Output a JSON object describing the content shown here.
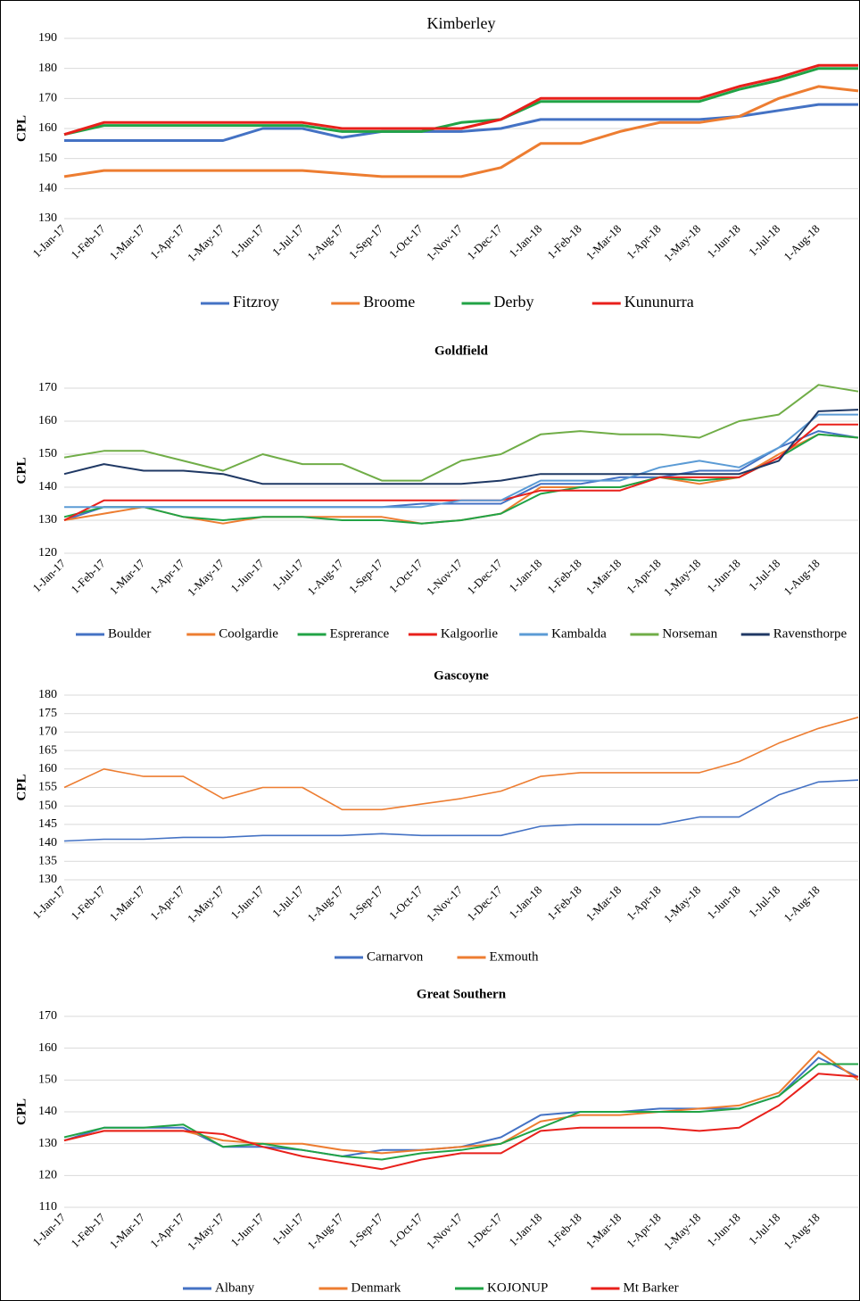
{
  "chart_data": [
    {
      "type": "line",
      "title": "Kimberley",
      "y_label": "CPL",
      "categories": [
        "1-Jan-17",
        "1-Feb-17",
        "1-Mar-17",
        "1-Apr-17",
        "1-May-17",
        "1-Jun-17",
        "1-Jul-17",
        "1-Aug-17",
        "1-Sep-17",
        "1-Oct-17",
        "1-Nov-17",
        "1-Dec-17",
        "1-Jan-18",
        "1-Feb-18",
        "1-Mar-18",
        "1-Apr-18",
        "1-May-18",
        "1-Jun-18",
        "1-Jul-18",
        "1-Aug-18",
        null
      ],
      "series": [
        {
          "name": "Fitzroy",
          "color": "#4472c4",
          "values": [
            156,
            156,
            156,
            156,
            156,
            160,
            160,
            157,
            159,
            159,
            159,
            160,
            163,
            163,
            163,
            163,
            163,
            164,
            166,
            168,
            168
          ]
        },
        {
          "name": "Broome",
          "color": "#ed7d31",
          "values": [
            144,
            146,
            146,
            146,
            146,
            146,
            146,
            145,
            144,
            144,
            144,
            147,
            155,
            155,
            159,
            162,
            162,
            164,
            170,
            174,
            172.5
          ]
        },
        {
          "name": "Derby",
          "color": "#21a346",
          "values": [
            158,
            161,
            161,
            161,
            161,
            161,
            161,
            159,
            159,
            159,
            162,
            163,
            169,
            169,
            169,
            169,
            169,
            173,
            176,
            180,
            180
          ]
        },
        {
          "name": "Kununurra",
          "color": "#e8201b",
          "values": [
            158,
            162,
            162,
            162,
            162,
            162,
            162,
            160,
            160,
            160,
            160,
            163,
            170,
            170,
            170,
            170,
            170,
            174,
            177,
            181,
            181
          ]
        }
      ],
      "ylim": [
        130,
        190
      ],
      "yticks": [
        130,
        140,
        150,
        160,
        170,
        180,
        190
      ],
      "grid": true
    },
    {
      "type": "line",
      "title": "Goldfield",
      "y_label": "CPL",
      "categories": [
        "1-Jan-17",
        "1-Feb-17",
        "1-Mar-17",
        "1-Apr-17",
        "1-May-17",
        "1-Jun-17",
        "1-Jul-17",
        "1-Aug-17",
        "1-Sep-17",
        "1-Oct-17",
        "1-Nov-17",
        "1-Dec-17",
        "1-Jan-18",
        "1-Feb-18",
        "1-Mar-18",
        "1-Apr-18",
        "1-May-18",
        "1-Jun-18",
        "1-Jul-18",
        "1-Aug-18",
        null
      ],
      "series": [
        {
          "name": "Boulder",
          "color": "#4472c4",
          "values": [
            130,
            134,
            134,
            134,
            134,
            134,
            134,
            134,
            134,
            135,
            135,
            135,
            141,
            141,
            143,
            143,
            145,
            145,
            152,
            157,
            155
          ]
        },
        {
          "name": "Coolgardie",
          "color": "#ed7d31",
          "values": [
            130,
            132,
            134,
            131,
            129,
            131,
            131,
            131,
            131,
            129,
            130,
            132,
            140,
            140,
            140,
            143,
            141,
            143,
            150,
            156,
            155
          ]
        },
        {
          "name": "Esprerance",
          "color": "#21a346",
          "values": [
            131,
            134,
            134,
            131,
            130,
            131,
            131,
            130,
            130,
            129,
            130,
            132,
            138,
            140,
            140,
            143,
            142,
            143,
            149,
            156,
            155
          ]
        },
        {
          "name": "Kalgoorlie",
          "color": "#e8201b",
          "values": [
            130,
            136,
            136,
            136,
            136,
            136,
            136,
            136,
            136,
            136,
            136,
            136,
            139,
            139,
            139,
            143,
            143,
            143,
            149,
            159,
            159
          ]
        },
        {
          "name": "Kambalda",
          "color": "#5b9bd5",
          "values": [
            134,
            134,
            134,
            134,
            134,
            134,
            134,
            134,
            134,
            134,
            136,
            136,
            142,
            142,
            142,
            146,
            148,
            146,
            152,
            162,
            162
          ]
        },
        {
          "name": "Norseman",
          "color": "#70ad47",
          "values": [
            149,
            151,
            151,
            148,
            145,
            150,
            147,
            147,
            142,
            142,
            148,
            150,
            156,
            157,
            156,
            156,
            155,
            160,
            162,
            171,
            169
          ]
        },
        {
          "name": "Ravensthorpe",
          "color": "#1f3864",
          "values": [
            144,
            147,
            145,
            145,
            144,
            141,
            141,
            141,
            141,
            141,
            141,
            142,
            144,
            144,
            144,
            144,
            144,
            144,
            148,
            163,
            163.5
          ]
        }
      ],
      "ylim": [
        120,
        170
      ],
      "yticks": [
        120,
        130,
        140,
        150,
        160,
        170
      ],
      "grid": true
    },
    {
      "type": "line",
      "title": "Gascoyne",
      "y_label": "CPL",
      "categories": [
        "1-Jan-17",
        "1-Feb-17",
        "1-Mar-17",
        "1-Apr-17",
        "1-May-17",
        "1-Jun-17",
        "1-Jul-17",
        "1-Aug-17",
        "1-Sep-17",
        "1-Oct-17",
        "1-Nov-17",
        "1-Dec-17",
        "1-Jan-18",
        "1-Feb-18",
        "1-Mar-18",
        "1-Apr-18",
        "1-May-18",
        "1-Jun-18",
        "1-Jul-18",
        "1-Aug-18",
        null
      ],
      "series": [
        {
          "name": "Carnarvon",
          "color": "#4472c4",
          "values": [
            140.5,
            141,
            141,
            141.5,
            141.5,
            142,
            142,
            142,
            142.5,
            142,
            142,
            142,
            144.5,
            145,
            145,
            145,
            147,
            147,
            153,
            156.5,
            157
          ]
        },
        {
          "name": "Exmouth",
          "color": "#ed7d31",
          "values": [
            155,
            160,
            158,
            158,
            152,
            155,
            155,
            149,
            149,
            150.5,
            152,
            154,
            158,
            159,
            159,
            159,
            159,
            162,
            167,
            171,
            174
          ]
        }
      ],
      "ylim": [
        130,
        180
      ],
      "yticks": [
        130,
        135,
        140,
        145,
        150,
        155,
        160,
        165,
        170,
        175,
        180
      ],
      "grid": true
    },
    {
      "type": "line",
      "title": "Great Southern",
      "y_label": "CPL",
      "categories": [
        "1-Jan-17",
        "1-Feb-17",
        "1-Mar-17",
        "1-Apr-17",
        "1-May-17",
        "1-Jun-17",
        "1-Jul-17",
        "1-Aug-17",
        "1-Sep-17",
        "1-Oct-17",
        "1-Nov-17",
        "1-Dec-17",
        "1-Jan-18",
        "1-Feb-18",
        "1-Mar-18",
        "1-Apr-18",
        "1-May-18",
        "1-Jun-18",
        "1-Jul-18",
        "1-Aug-18",
        null
      ],
      "series": [
        {
          "name": "Albany",
          "color": "#4472c4",
          "values": [
            131,
            135,
            135,
            135,
            129,
            129,
            128,
            126,
            128,
            128,
            129,
            132,
            139,
            140,
            140,
            141,
            141,
            141,
            145,
            157,
            151
          ]
        },
        {
          "name": "Denmark",
          "color": "#ed7d31",
          "values": [
            131,
            134,
            134,
            134,
            131,
            130,
            130,
            128,
            127,
            128,
            129,
            130,
            137,
            139,
            139,
            140,
            141,
            142,
            146,
            159,
            150
          ]
        },
        {
          "name": "KOJONUP",
          "color": "#21a346",
          "values": [
            132,
            135,
            135,
            136,
            129,
            130,
            128,
            126,
            125,
            127,
            128,
            130,
            135,
            140,
            140,
            140,
            140,
            141,
            145,
            155,
            155
          ]
        },
        {
          "name": "Mt Barker",
          "color": "#e8201b",
          "values": [
            131,
            134,
            134,
            134,
            133,
            129,
            126,
            124,
            122,
            125,
            127,
            127,
            134,
            135,
            135,
            135,
            134,
            135,
            142,
            152,
            151
          ]
        }
      ],
      "ylim": [
        110,
        170
      ],
      "yticks": [
        110,
        120,
        130,
        140,
        150,
        160,
        170
      ],
      "grid": true
    }
  ]
}
